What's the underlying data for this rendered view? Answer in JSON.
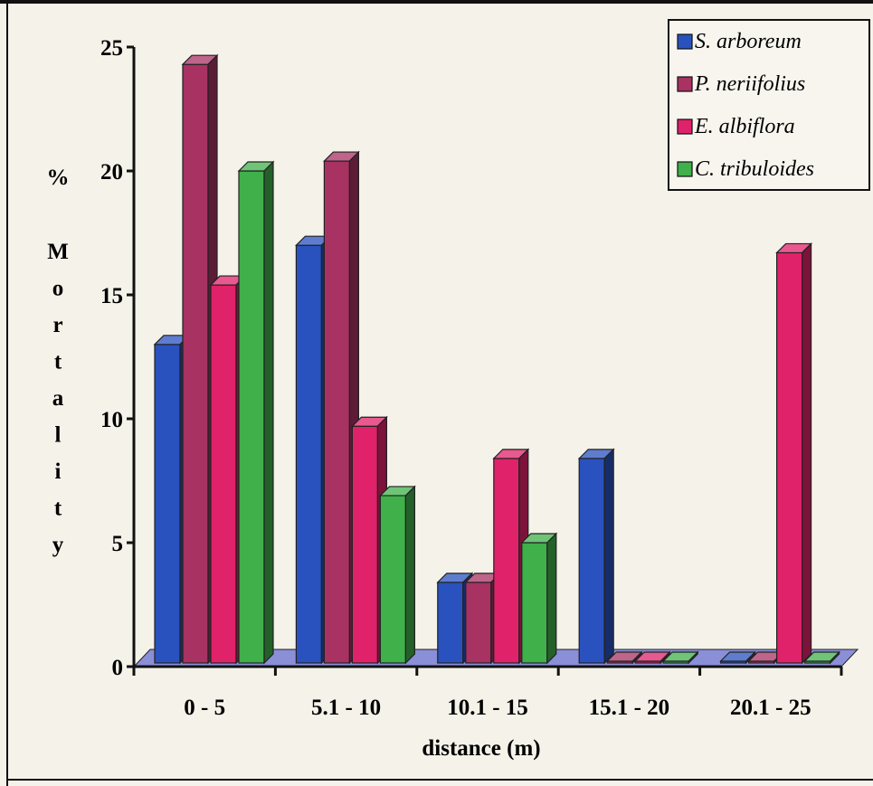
{
  "chart_data": {
    "type": "bar",
    "title": "",
    "xlabel": "distance (m)",
    "ylabel": "% Mortality",
    "ylim": [
      0,
      25
    ],
    "yticks": [
      0,
      5,
      10,
      15,
      20,
      25
    ],
    "categories": [
      "0 - 5",
      "5.1 - 10",
      "10.1 - 15",
      "15.1 - 20",
      "20.1 - 25"
    ],
    "series": [
      {
        "name": "S. arboreum",
        "color": "#2a52be",
        "values": [
          13.0,
          17.0,
          3.4,
          8.4,
          0
        ]
      },
      {
        "name": "P. neriifolius",
        "color": "#a83262",
        "values": [
          24.3,
          20.4,
          3.4,
          0,
          0
        ]
      },
      {
        "name": "E. albiflora",
        "color": "#e0226a",
        "values": [
          15.4,
          9.7,
          8.4,
          0,
          16.7
        ]
      },
      {
        "name": "C. tribuloides",
        "color": "#3fb04a",
        "values": [
          20.0,
          6.9,
          5.0,
          0,
          0
        ]
      }
    ],
    "legend_position": "top-right",
    "grid": false,
    "style": "3d-bars"
  }
}
